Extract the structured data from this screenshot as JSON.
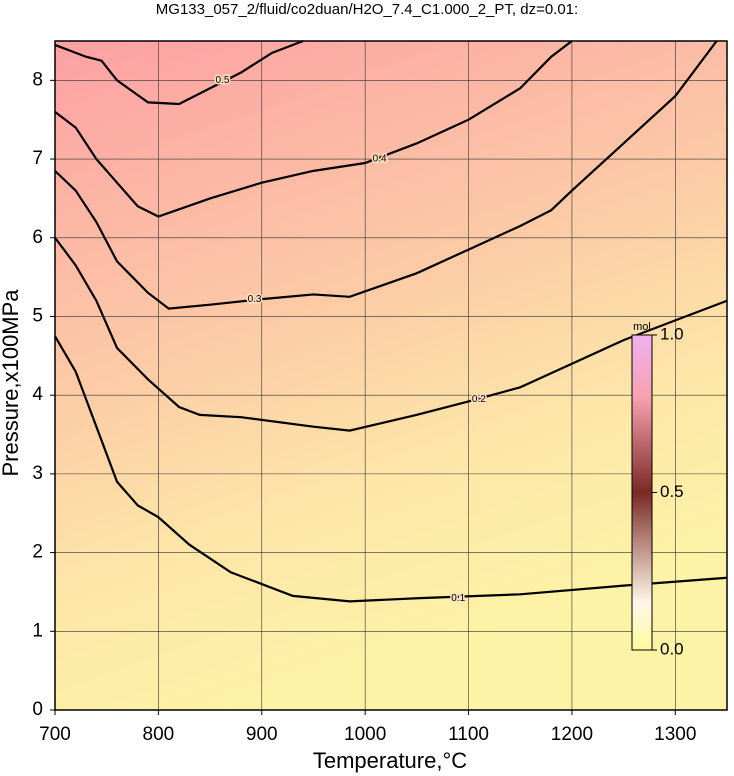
{
  "chart_data": {
    "type": "contour",
    "title": "MG133_057_2/fluid/co2duan/H2O_7.4_C1.000_2_PT, dz=0.01:",
    "x_label": "Temperature,°C",
    "y_label": "Pressure,x100MPa",
    "xlim": [
      700,
      1350
    ],
    "ylim": [
      0,
      8.5
    ],
    "xticks": [
      700,
      800,
      900,
      1000,
      1100,
      1200,
      1300
    ],
    "yticks": [
      0,
      1,
      2,
      3,
      4,
      5,
      6,
      7,
      8
    ],
    "grid": true,
    "contours": [
      {
        "level": 0.1,
        "label_at": [
          1090,
          1.42
        ],
        "x": [
          700,
          720,
          740,
          760,
          780,
          800,
          830,
          870,
          900,
          930,
          985,
          1050,
          1150,
          1250,
          1350
        ],
        "y": [
          4.75,
          4.3,
          3.6,
          2.9,
          2.6,
          2.45,
          2.1,
          1.75,
          1.6,
          1.45,
          1.38,
          1.42,
          1.47,
          1.58,
          1.68
        ]
      },
      {
        "level": 0.2,
        "label_at": [
          1110,
          3.95
        ],
        "x": [
          700,
          720,
          740,
          760,
          790,
          820,
          840,
          880,
          950,
          985,
          1050,
          1100,
          1150,
          1200,
          1250,
          1300,
          1350
        ],
        "y": [
          6.0,
          5.65,
          5.2,
          4.6,
          4.2,
          3.85,
          3.75,
          3.72,
          3.6,
          3.55,
          3.75,
          3.92,
          4.1,
          4.4,
          4.7,
          4.95,
          5.2
        ]
      },
      {
        "level": 0.3,
        "label_at": [
          893,
          5.22
        ],
        "x": [
          700,
          720,
          740,
          760,
          790,
          810,
          850,
          900,
          950,
          985,
          1050,
          1100,
          1150,
          1180,
          1200,
          1250,
          1300,
          1340
        ],
        "y": [
          6.85,
          6.6,
          6.2,
          5.7,
          5.3,
          5.1,
          5.15,
          5.22,
          5.28,
          5.25,
          5.55,
          5.85,
          6.15,
          6.35,
          6.6,
          7.2,
          7.8,
          8.5
        ]
      },
      {
        "level": 0.4,
        "label_at": [
          1014,
          7.0
        ],
        "x": [
          700,
          720,
          740,
          760,
          780,
          800,
          850,
          900,
          950,
          1000,
          1050,
          1100,
          1150,
          1180,
          1200
        ],
        "y": [
          7.6,
          7.4,
          7.0,
          6.7,
          6.4,
          6.27,
          6.5,
          6.7,
          6.85,
          6.95,
          7.2,
          7.5,
          7.9,
          8.3,
          8.5
        ]
      },
      {
        "level": 0.5,
        "label_at": [
          862,
          8.0
        ],
        "x": [
          700,
          730,
          745,
          760,
          790,
          820,
          850,
          880,
          910,
          940
        ],
        "y": [
          8.45,
          8.3,
          8.25,
          8.0,
          7.72,
          7.7,
          7.9,
          8.1,
          8.35,
          8.5
        ]
      }
    ],
    "colorbar": {
      "unit": "mol",
      "lim": [
        0,
        1
      ],
      "ticks": [
        {
          "value": 0,
          "label": "0.0"
        },
        {
          "value": 0.5,
          "label": "0.5"
        },
        {
          "value": 1,
          "label": "1.0"
        }
      ]
    }
  }
}
